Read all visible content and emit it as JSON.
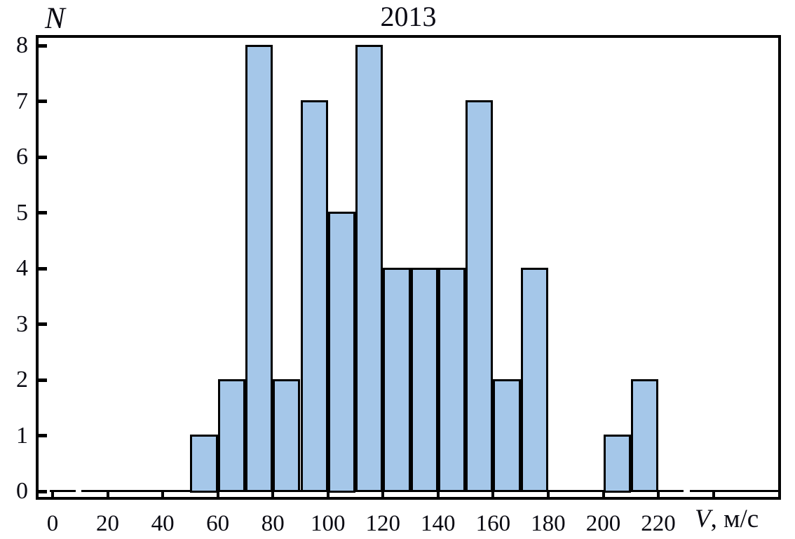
{
  "header": {
    "title": "2013"
  },
  "axis_labels": {
    "y": "N",
    "x_variable": "V",
    "x_unit": ", м/с"
  },
  "chart_data": {
    "type": "bar",
    "subtype": "histogram",
    "title": "2013",
    "xlabel": "V, м/с",
    "ylabel": "N",
    "bin_width": 10,
    "bins": [
      {
        "range": [
          50,
          60
        ],
        "count": 1
      },
      {
        "range": [
          60,
          70
        ],
        "count": 2
      },
      {
        "range": [
          70,
          80
        ],
        "count": 8
      },
      {
        "range": [
          80,
          90
        ],
        "count": 2
      },
      {
        "range": [
          90,
          100
        ],
        "count": 7
      },
      {
        "range": [
          100,
          110
        ],
        "count": 5
      },
      {
        "range": [
          110,
          120
        ],
        "count": 8
      },
      {
        "range": [
          120,
          130
        ],
        "count": 4
      },
      {
        "range": [
          130,
          140
        ],
        "count": 4
      },
      {
        "range": [
          140,
          150
        ],
        "count": 4
      },
      {
        "range": [
          150,
          160
        ],
        "count": 7
      },
      {
        "range": [
          160,
          170
        ],
        "count": 2
      },
      {
        "range": [
          170,
          180
        ],
        "count": 4
      },
      {
        "range": [
          180,
          190
        ],
        "count": 0
      },
      {
        "range": [
          190,
          200
        ],
        "count": 0
      },
      {
        "range": [
          200,
          210
        ],
        "count": 1
      },
      {
        "range": [
          210,
          220
        ],
        "count": 2
      }
    ],
    "x_ticks": [
      0,
      20,
      40,
      60,
      80,
      100,
      120,
      140,
      160,
      180,
      200,
      220
    ],
    "x_ticks_unlabeled": [
      240
    ],
    "y_ticks": [
      0,
      1,
      2,
      3,
      4,
      5,
      6,
      7,
      8
    ],
    "xlim": [
      -6,
      264
    ],
    "ylim": [
      0,
      8.2
    ],
    "grid": false,
    "legend": "none",
    "bar_fill": "#a5c7e9",
    "bar_border": "#000000",
    "frame_color": "#000000",
    "background": "#ffffff"
  }
}
